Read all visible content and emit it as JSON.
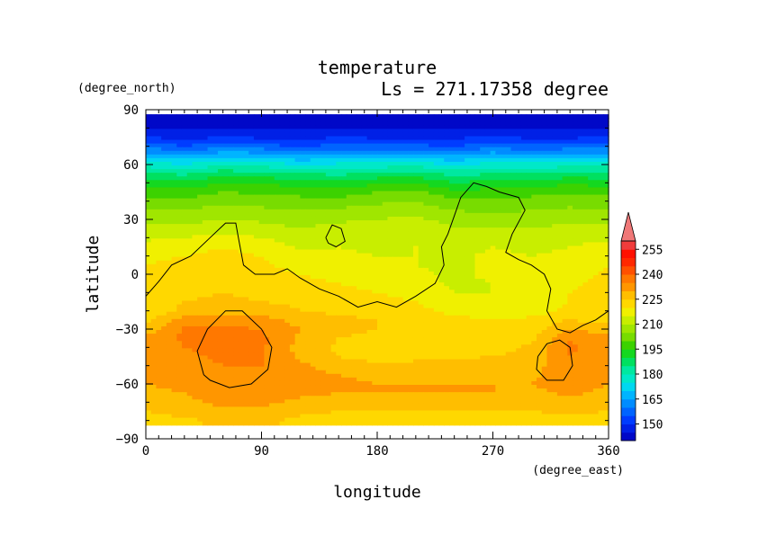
{
  "chart_data": {
    "type": "heatmap",
    "title": "temperature",
    "subtitle": "Ls = 271.17358 degree",
    "xlabel": "longitude",
    "ylabel": "latitude",
    "x_unit": "(degree_east)",
    "y_unit": "(degree_north)",
    "xlim": [
      0,
      360
    ],
    "ylim": [
      -90,
      90
    ],
    "x_ticks": [
      "0",
      "90",
      "180",
      "270",
      "360"
    ],
    "y_ticks": [
      "90",
      "60",
      "30",
      "0",
      "−30",
      "−60",
      "−90"
    ],
    "colorbar": {
      "levels": [
        150,
        165,
        180,
        195,
        210,
        225,
        240,
        255
      ],
      "labels": [
        "150",
        "165",
        "180",
        "195",
        "210",
        "225",
        "240",
        "255"
      ],
      "bands": [
        {
          "from": 140,
          "to": 145,
          "color": "#0008c8"
        },
        {
          "from": 145,
          "to": 150,
          "color": "#0020e6"
        },
        {
          "from": 150,
          "to": 155,
          "color": "#003cff"
        },
        {
          "from": 155,
          "to": 160,
          "color": "#0064ff"
        },
        {
          "from": 160,
          "to": 165,
          "color": "#008cff"
        },
        {
          "from": 165,
          "to": 170,
          "color": "#00b4ff"
        },
        {
          "from": 170,
          "to": 175,
          "color": "#00d8f0"
        },
        {
          "from": 175,
          "to": 180,
          "color": "#00e8c8"
        },
        {
          "from": 180,
          "to": 185,
          "color": "#00e8a0"
        },
        {
          "from": 185,
          "to": 190,
          "color": "#00e060"
        },
        {
          "from": 190,
          "to": 195,
          "color": "#14d820"
        },
        {
          "from": 195,
          "to": 200,
          "color": "#3cd200"
        },
        {
          "from": 200,
          "to": 205,
          "color": "#78dc00"
        },
        {
          "from": 205,
          "to": 210,
          "color": "#a0e600"
        },
        {
          "from": 210,
          "to": 215,
          "color": "#c8ee00"
        },
        {
          "from": 215,
          "to": 220,
          "color": "#f0f000"
        },
        {
          "from": 220,
          "to": 225,
          "color": "#ffd800"
        },
        {
          "from": 225,
          "to": 230,
          "color": "#ffbe00"
        },
        {
          "from": 230,
          "to": 235,
          "color": "#ff9600"
        },
        {
          "from": 235,
          "to": 240,
          "color": "#ff7800"
        },
        {
          "from": 240,
          "to": 245,
          "color": "#ff5000"
        },
        {
          "from": 245,
          "to": 250,
          "color": "#ff2800"
        },
        {
          "from": 250,
          "to": 255,
          "color": "#ff1000"
        },
        {
          "from": 255,
          "to": 260,
          "color": "#f03c3c"
        },
        {
          "from": 260,
          "to": 270,
          "color": "#f07878"
        }
      ]
    },
    "latitudes": [
      85,
      80,
      75,
      70,
      65,
      60,
      55,
      50,
      45,
      40,
      35,
      30,
      25,
      20,
      15,
      10,
      5,
      0,
      -5,
      -10,
      -15,
      -20,
      -25,
      -30,
      -35,
      -40,
      -45,
      -50,
      -55,
      -60,
      -65,
      -70,
      -75,
      -80
    ],
    "longitudes": [
      0,
      30,
      60,
      90,
      120,
      150,
      180,
      210,
      240,
      270,
      300,
      330,
      360
    ],
    "values": [
      [
        142,
        142,
        142,
        142,
        142,
        142,
        142,
        142,
        142,
        142,
        142,
        142,
        142
      ],
      [
        145,
        145,
        145,
        145,
        145,
        145,
        145,
        145,
        145,
        145,
        145,
        145,
        145
      ],
      [
        150,
        148,
        150,
        149,
        148,
        150,
        149,
        149,
        149,
        150,
        149,
        149,
        150
      ],
      [
        158,
        155,
        158,
        157,
        154,
        157,
        156,
        156,
        155,
        158,
        156,
        157,
        158
      ],
      [
        168,
        165,
        169,
        168,
        164,
        166,
        167,
        167,
        164,
        168,
        166,
        168,
        168
      ],
      [
        178,
        175,
        179,
        178,
        175,
        176,
        177,
        178,
        174,
        177,
        176,
        178,
        178
      ],
      [
        186,
        184,
        188,
        187,
        185,
        184,
        186,
        187,
        183,
        185,
        185,
        187,
        186
      ],
      [
        193,
        191,
        195,
        194,
        193,
        191,
        194,
        195,
        190,
        192,
        192,
        194,
        193
      ],
      [
        198,
        197,
        200,
        199,
        198,
        197,
        200,
        201,
        196,
        197,
        198,
        199,
        198
      ],
      [
        202,
        201,
        204,
        203,
        202,
        202,
        204,
        205,
        201,
        201,
        202,
        203,
        202
      ],
      [
        205,
        205,
        207,
        206,
        205,
        206,
        207,
        208,
        205,
        204,
        205,
        206,
        205
      ],
      [
        208,
        208,
        210,
        209,
        208,
        209,
        210,
        211,
        208,
        207,
        208,
        209,
        208
      ],
      [
        211,
        212,
        213,
        212,
        210,
        212,
        212,
        213,
        210,
        210,
        210,
        211,
        211
      ],
      [
        214,
        215,
        217,
        215,
        212,
        214,
        213,
        214,
        212,
        213,
        212,
        213,
        214
      ],
      [
        217,
        218,
        220,
        218,
        214,
        215,
        214,
        215,
        213,
        215,
        214,
        215,
        217
      ],
      [
        219,
        220,
        221,
        220,
        216,
        216,
        215,
        215,
        214,
        216,
        215,
        216,
        219
      ],
      [
        220,
        221,
        222,
        221,
        218,
        217,
        216,
        215,
        214,
        216,
        216,
        217,
        220
      ],
      [
        221,
        222,
        223,
        222,
        220,
        218,
        217,
        216,
        214,
        216,
        216,
        218,
        221
      ],
      [
        222,
        223,
        224,
        223,
        222,
        220,
        218,
        217,
        214,
        215,
        216,
        219,
        222
      ],
      [
        223,
        224,
        225,
        224,
        223,
        222,
        220,
        218,
        215,
        215,
        216,
        220,
        223
      ],
      [
        223,
        225,
        226,
        225,
        224,
        223,
        222,
        220,
        216,
        215,
        216,
        220,
        223
      ],
      [
        222,
        226,
        228,
        227,
        225,
        224,
        223,
        222,
        218,
        216,
        216,
        222,
        222
      ],
      [
        223,
        232,
        233,
        232,
        228,
        226,
        225,
        224,
        222,
        220,
        222,
        225,
        223
      ],
      [
        227,
        236,
        236,
        235,
        230,
        226,
        225,
        224,
        223,
        222,
        222,
        230,
        227
      ],
      [
        231,
        236,
        237,
        236,
        229,
        225,
        224,
        223,
        222,
        222,
        224,
        234,
        231
      ],
      [
        232,
        235,
        237,
        236,
        228,
        224,
        222,
        221,
        221,
        222,
        226,
        236,
        232
      ],
      [
        232,
        234,
        236,
        235,
        229,
        225,
        223,
        223,
        224,
        225,
        227,
        235,
        232
      ],
      [
        232,
        233,
        235,
        235,
        231,
        227,
        226,
        227,
        227,
        228,
        228,
        234,
        232
      ],
      [
        231,
        232,
        234,
        234,
        232,
        230,
        229,
        229,
        229,
        229,
        229,
        233,
        231
      ],
      [
        230,
        231,
        233,
        233,
        232,
        231,
        230,
        230,
        230,
        230,
        230,
        232,
        230
      ],
      [
        229,
        230,
        232,
        232,
        231,
        230,
        230,
        230,
        230,
        230,
        229,
        231,
        229
      ],
      [
        227,
        229,
        231,
        231,
        229,
        228,
        228,
        228,
        228,
        228,
        227,
        228,
        227
      ],
      [
        225,
        227,
        229,
        229,
        226,
        225,
        225,
        225,
        225,
        225,
        225,
        226,
        225
      ],
      [
        223,
        224,
        226,
        226,
        224,
        223,
        223,
        223,
        223,
        223,
        223,
        223,
        223
      ]
    ],
    "overlay": "black contour line (topography outline)"
  }
}
